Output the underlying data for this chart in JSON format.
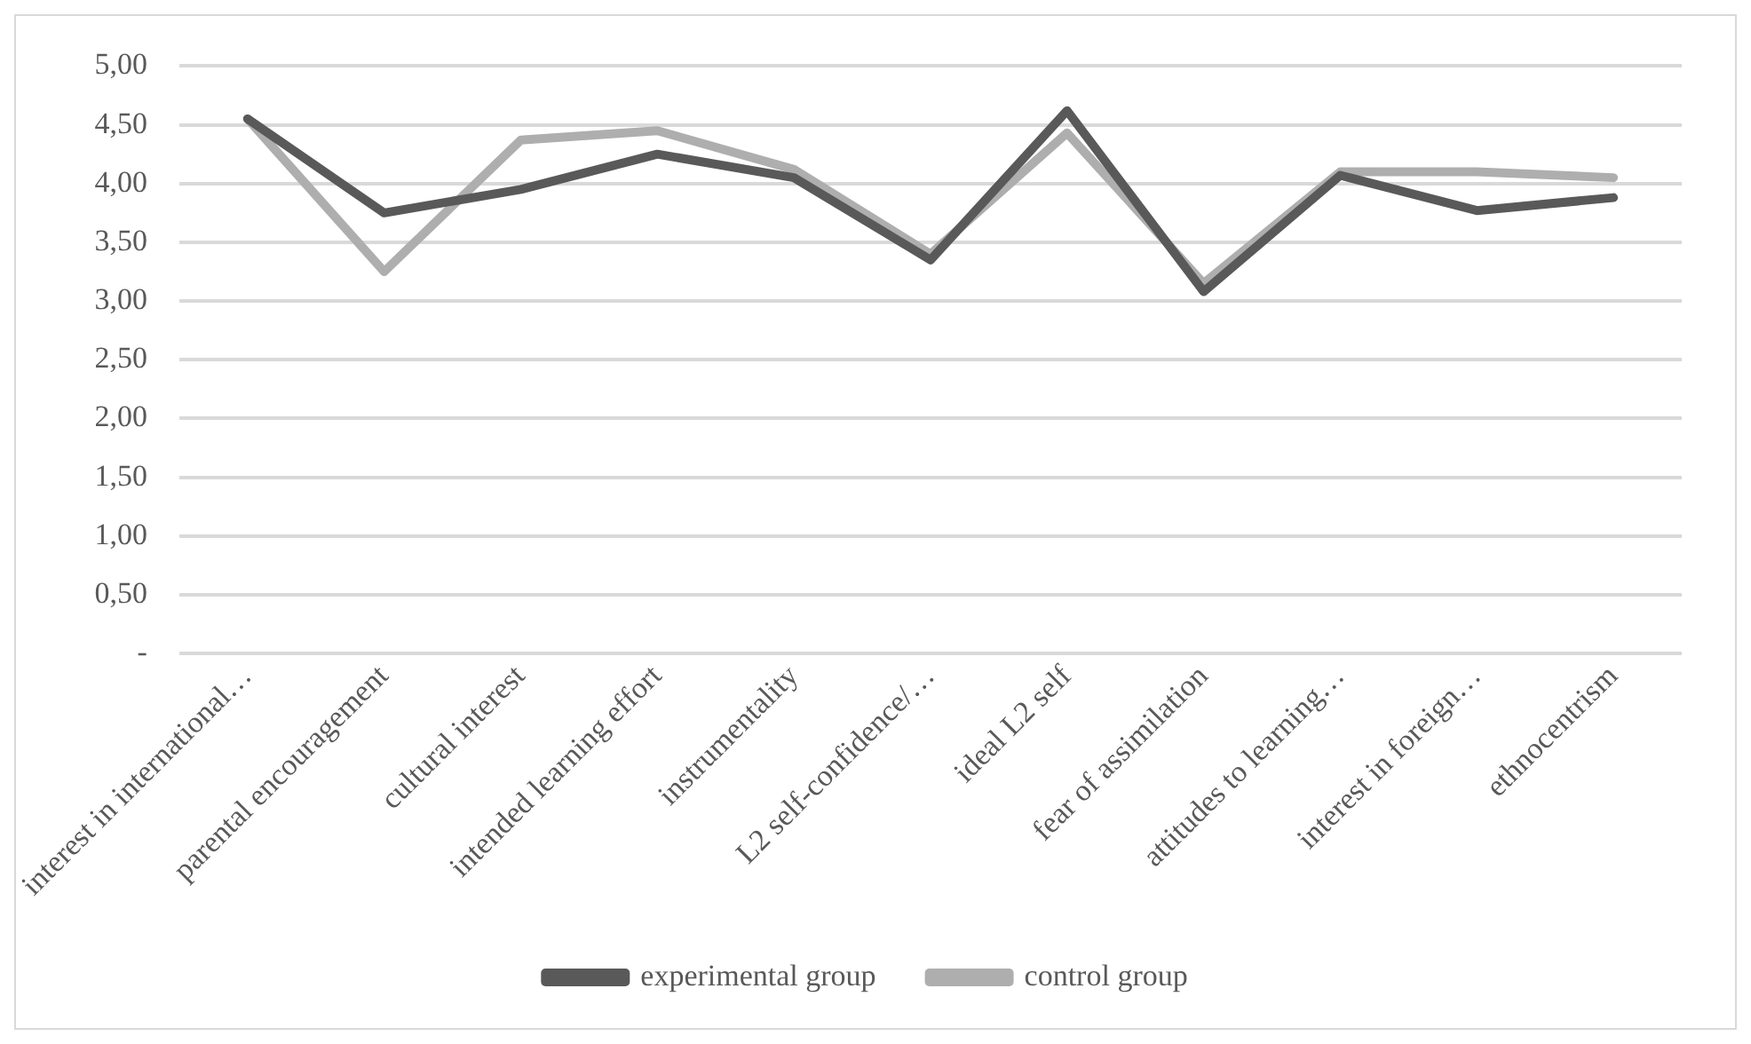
{
  "chart_data": {
    "type": "line",
    "categories": [
      "interest in international…",
      "parental encouragement",
      "cultural interest",
      "intended learning effort",
      "instrumentality",
      "L2 self-confidence/…",
      "ideal L2 self",
      "fear of assimilation",
      "attitudes to learning…",
      "interest in foreign…",
      "ethnocentrism"
    ],
    "series": [
      {
        "name": "experimental group",
        "color": "#595959",
        "values": [
          4.55,
          3.75,
          3.95,
          4.25,
          4.05,
          3.35,
          4.62,
          3.08,
          4.07,
          3.77,
          3.88
        ]
      },
      {
        "name": "control group",
        "color": "#aeaeae",
        "values": [
          4.55,
          3.25,
          4.37,
          4.45,
          4.12,
          3.4,
          4.43,
          3.15,
          4.1,
          4.1,
          4.05
        ]
      }
    ],
    "ylim": [
      0,
      5
    ],
    "yticks": [
      {
        "value": 0,
        "label": "-"
      },
      {
        "value": 0.5,
        "label": "0,50"
      },
      {
        "value": 1,
        "label": "1,00"
      },
      {
        "value": 1.5,
        "label": "1,50"
      },
      {
        "value": 2,
        "label": "2,00"
      },
      {
        "value": 2.5,
        "label": "2,50"
      },
      {
        "value": 3,
        "label": "3,00"
      },
      {
        "value": 3.5,
        "label": "3,50"
      },
      {
        "value": 4,
        "label": "4,00"
      },
      {
        "value": 4.5,
        "label": "4,50"
      },
      {
        "value": 5,
        "label": "5,00"
      }
    ],
    "grid": "y",
    "legend": "bottom",
    "marker": "none",
    "line_style": "solid"
  }
}
